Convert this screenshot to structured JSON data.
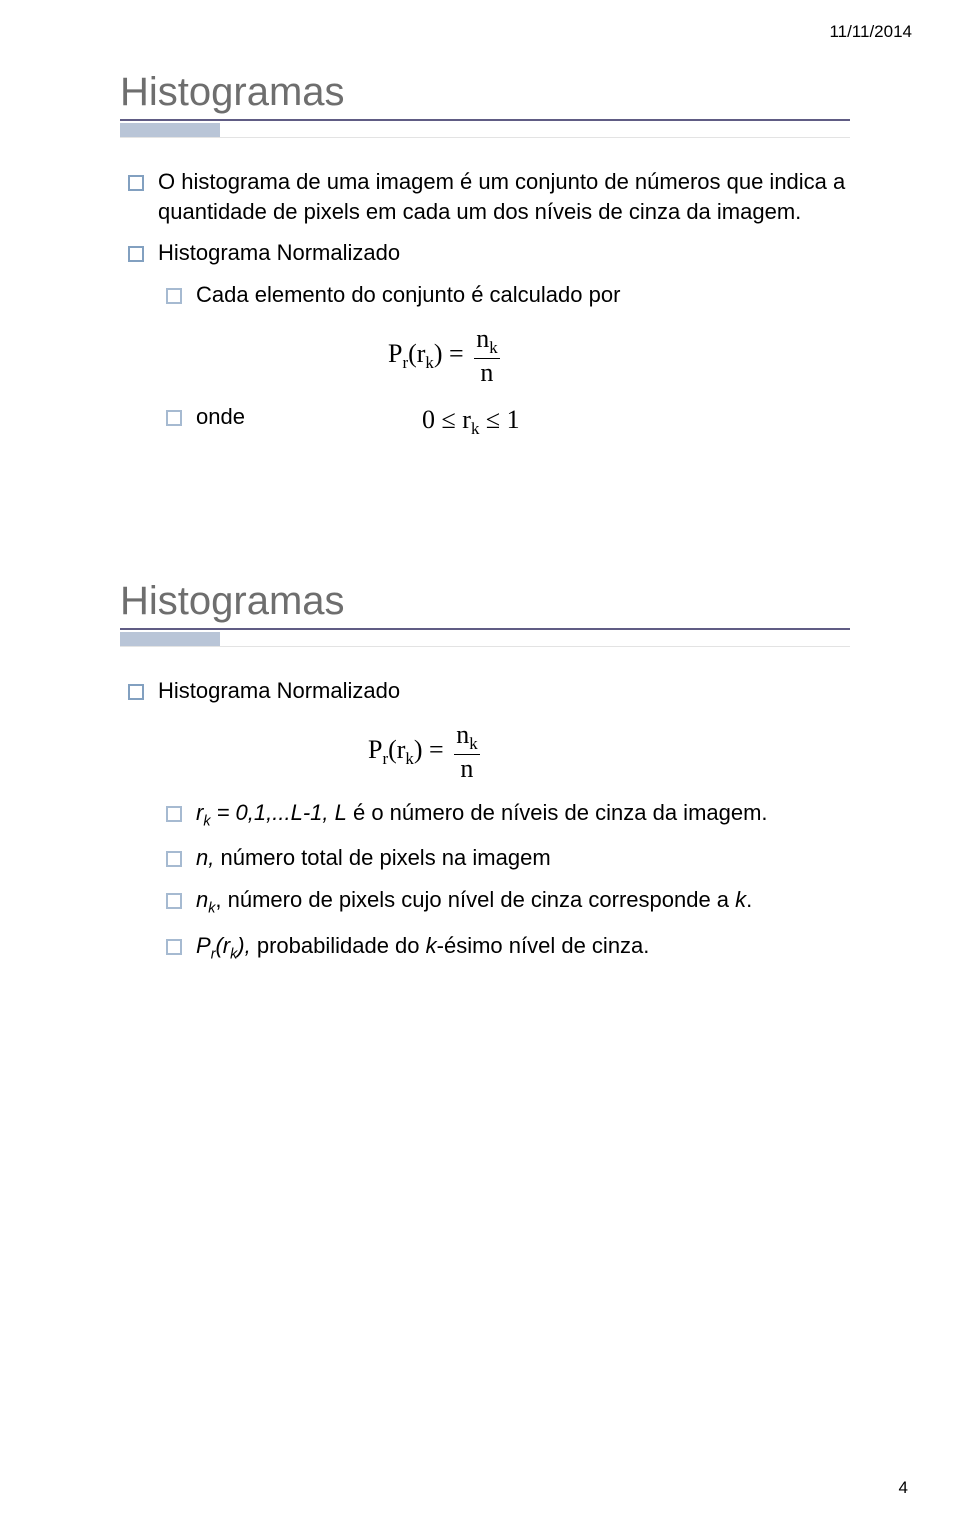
{
  "page": {
    "date": "11/11/2014",
    "number": "4"
  },
  "slide1": {
    "title": "Histogramas",
    "bullet1": "O histograma de uma imagem é um conjunto de números que indica a quantidade de pixels em cada um dos níveis de cinza da imagem.",
    "bullet2": "Histograma Normalizado",
    "sub1": "Cada elemento do conjunto é calculado por",
    "sub2": "onde",
    "formula1": {
      "lhs_P": "P",
      "lhs_sub": "r",
      "lhs_open": "(r",
      "lhs_ksub": "k",
      "lhs_close": ") =",
      "num_n": "n",
      "num_sub": "k",
      "den": "n"
    },
    "range": {
      "zero": "0 ≤ r",
      "ksub": "k",
      "one": " ≤ 1"
    }
  },
  "slide2": {
    "title": "Histogramas",
    "bullet1": "Histograma Normalizado",
    "formula": {
      "lhs_P": "P",
      "lhs_sub": "r",
      "lhs_open": "(r",
      "lhs_ksub": "k",
      "lhs_close": ") =",
      "num_n": "n",
      "num_sub": "k",
      "den": "n"
    },
    "sub1_a": "r",
    "sub1_asub": "k",
    "sub1_b": " = 0,1,...L-1, L",
    "sub1_c": " é o número de níveis de cinza da imagem.",
    "sub2_a": "n, ",
    "sub2_b": "número total de pixels na imagem",
    "sub3_a": "n",
    "sub3_asub": "k",
    "sub3_b": ", número de pixels cujo nível de cinza corresponde a ",
    "sub3_c": "k",
    "sub3_d": ".",
    "sub4_a": "P",
    "sub4_asub": "r",
    "sub4_b": "(r",
    "sub4_bsub": "k",
    "sub4_c": "), ",
    "sub4_d": "probabilidade do ",
    "sub4_e": "k",
    "sub4_f": "-ésimo nível de cinza."
  },
  "style": {
    "accent_bar_color": "#b9c5d7",
    "rule_color": "#605c84",
    "marker_color": "#82a0c0",
    "title_color": "#6e6e6e",
    "background": "#ffffff"
  }
}
